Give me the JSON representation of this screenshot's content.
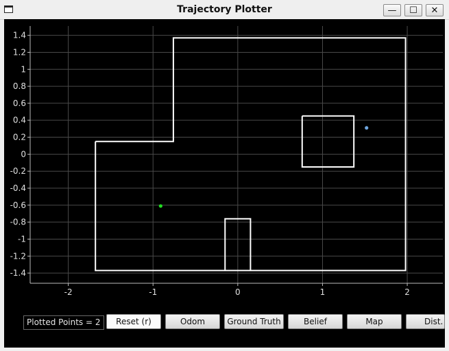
{
  "window": {
    "title": "Trajectory Plotter",
    "minimize_glyph": "—",
    "maximize_glyph": "☐",
    "close_glyph": "✕"
  },
  "chart_data": {
    "type": "line",
    "title": "",
    "xlabel": "",
    "ylabel": "",
    "xlim": [
      -2.45,
      2.42
    ],
    "ylim": [
      -1.52,
      1.51
    ],
    "grid": true,
    "xticks": [
      -2,
      -1,
      0,
      1,
      2
    ],
    "yticks": [
      1.4,
      1.2,
      1,
      0.8,
      0.6,
      0.4,
      0.2,
      0,
      -0.2,
      -0.4,
      -0.6,
      -0.8,
      -1,
      -1.2,
      -1.4
    ],
    "map_polygons": [
      [
        [
          -1.68,
          0.15
        ],
        [
          -0.76,
          0.15
        ],
        [
          -0.76,
          1.37
        ],
        [
          1.98,
          1.37
        ],
        [
          1.98,
          -1.37
        ],
        [
          -1.68,
          -1.37
        ],
        [
          -1.68,
          0.15
        ]
      ],
      [
        [
          0.76,
          0.45
        ],
        [
          1.37,
          0.45
        ],
        [
          1.37,
          -0.15
        ],
        [
          0.76,
          -0.15
        ],
        [
          0.76,
          0.45
        ]
      ],
      [
        [
          -0.15,
          -1.37
        ],
        [
          -0.15,
          -0.76
        ],
        [
          0.15,
          -0.76
        ],
        [
          0.15,
          -1.37
        ]
      ]
    ],
    "points": [
      {
        "x": -0.91,
        "y": -0.61,
        "color": "#22dd22"
      },
      {
        "x": 1.52,
        "y": 0.31,
        "color": "#6fa6e0"
      }
    ],
    "map_color": "#ffffff",
    "grid_color": "#4a4a4a",
    "axis_color": "#bdbdbd"
  },
  "controls": {
    "plotted_points_label": "Plotted Points = 2",
    "buttons": [
      "Reset (r)",
      "Odom",
      "Ground Truth",
      "Belief",
      "Map",
      "Dist."
    ]
  }
}
